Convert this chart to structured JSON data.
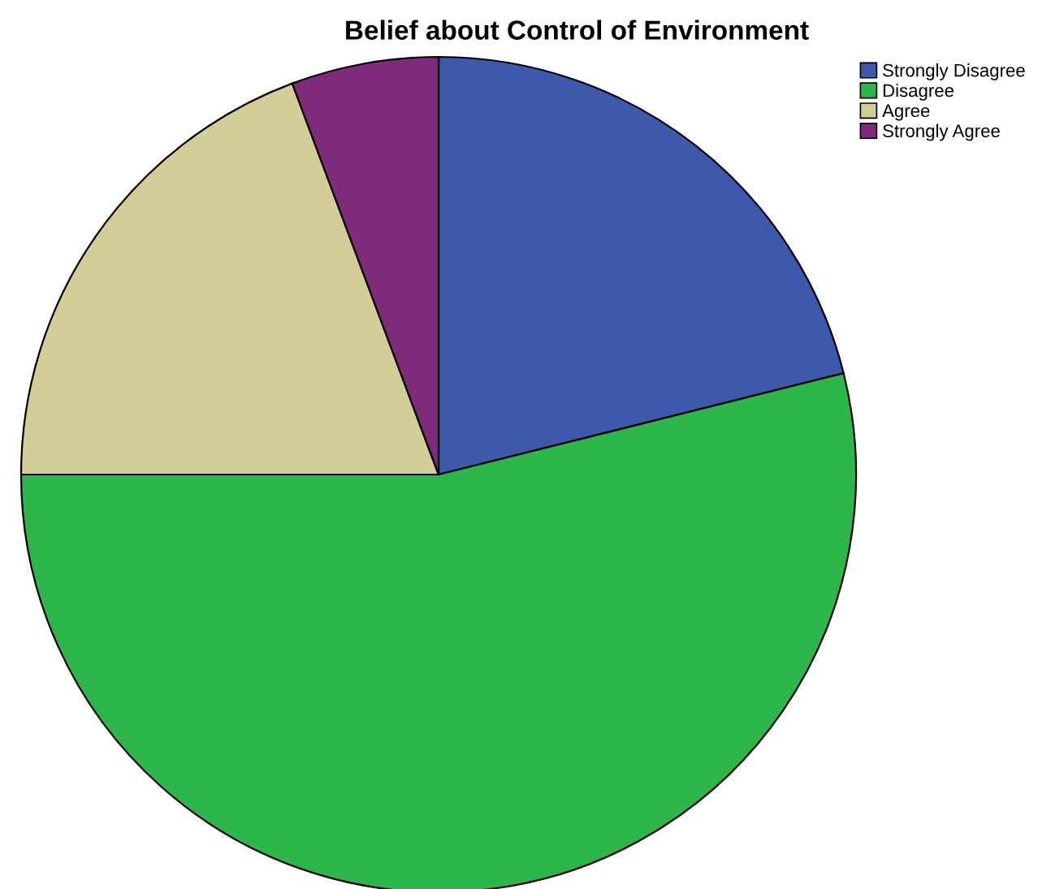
{
  "chart_data": {
    "type": "pie",
    "title": "Belief about Control of Environment",
    "categories": [
      "Strongly Disagree",
      "Disagree",
      "Agree",
      "Strongly Agree"
    ],
    "values": [
      21.1,
      53.9,
      19.3,
      5.7
    ],
    "colors": [
      "#3e58ac",
      "#2db74a",
      "#d3ce97",
      "#7f2b7b"
    ],
    "legend": "top right"
  }
}
